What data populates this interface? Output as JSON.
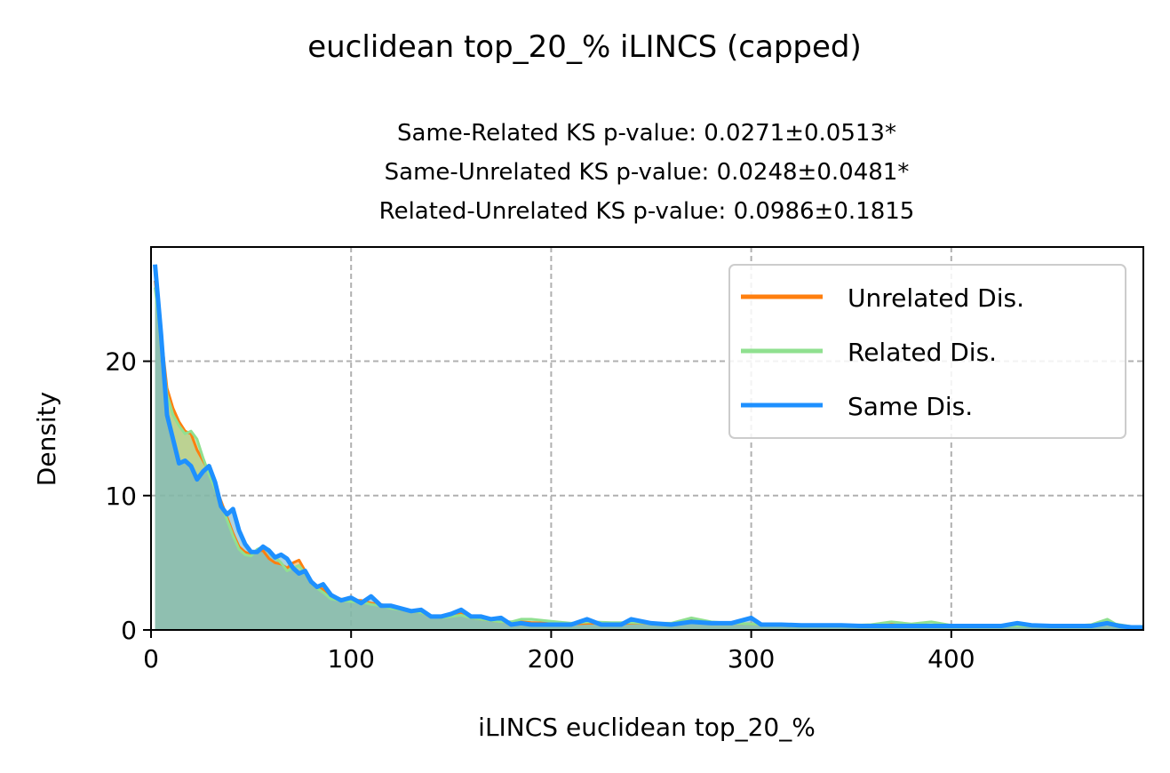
{
  "chart_data": {
    "type": "area",
    "suptitle": "euclidean top_20_% iLINCS (capped)",
    "title_lines": [
      "Same-Related KS p-value: 0.0271±0.0513*",
      "Same-Unrelated KS p-value: 0.0248±0.0481*",
      "Related-Unrelated KS p-value: 0.0986±0.1815"
    ],
    "xlabel": "iLINCS euclidean top_20_%",
    "ylabel": "Density",
    "xlim": [
      0,
      496
    ],
    "ylim": [
      0,
      28.5
    ],
    "xticks": [
      0,
      100,
      200,
      300,
      400
    ],
    "yticks": [
      0,
      10,
      20
    ],
    "grid": true,
    "legend_position": "upper-right",
    "series": [
      {
        "name": "Unrelated Dis.",
        "color": "#ff7f0e",
        "fill": "#e8a040",
        "points": [
          [
            2,
            26
          ],
          [
            5,
            22
          ],
          [
            8,
            18
          ],
          [
            11,
            16.5
          ],
          [
            14,
            15.5
          ],
          [
            17,
            14.8
          ],
          [
            20,
            14.6
          ],
          [
            23,
            13.4
          ],
          [
            26,
            12.6
          ],
          [
            29,
            11.8
          ],
          [
            32,
            10.8
          ],
          [
            35,
            9.6
          ],
          [
            38,
            8.4
          ],
          [
            41,
            7.2
          ],
          [
            44,
            6.2
          ],
          [
            47,
            5.8
          ],
          [
            50,
            5.6
          ],
          [
            53,
            5.9
          ],
          [
            56,
            5.9
          ],
          [
            59,
            5.3
          ],
          [
            62,
            5
          ],
          [
            65,
            4.9
          ],
          [
            68,
            4.6
          ],
          [
            71,
            5
          ],
          [
            74,
            5.2
          ],
          [
            77,
            4.4
          ],
          [
            80,
            3.6
          ],
          [
            83,
            3.3
          ],
          [
            86,
            3
          ],
          [
            90,
            2.4
          ],
          [
            95,
            2.3
          ],
          [
            100,
            2.2
          ],
          [
            105,
            2.2
          ],
          [
            110,
            2
          ],
          [
            115,
            1.9
          ],
          [
            120,
            1.7
          ],
          [
            125,
            1.5
          ],
          [
            130,
            1.4
          ],
          [
            135,
            1.3
          ],
          [
            140,
            1
          ],
          [
            145,
            0.9
          ],
          [
            150,
            1.1
          ],
          [
            155,
            1.2
          ],
          [
            160,
            0.9
          ],
          [
            165,
            0.8
          ],
          [
            170,
            0.7
          ],
          [
            175,
            0.6
          ],
          [
            180,
            0.6
          ],
          [
            185,
            0.6
          ],
          [
            190,
            0.55
          ],
          [
            200,
            0.5
          ],
          [
            210,
            0.45
          ],
          [
            220,
            0.5
          ],
          [
            230,
            0.45
          ],
          [
            240,
            0.5
          ],
          [
            250,
            0.5
          ],
          [
            260,
            0.45
          ],
          [
            270,
            0.7
          ],
          [
            280,
            0.55
          ],
          [
            290,
            0.5
          ],
          [
            300,
            0.45
          ],
          [
            310,
            0.4
          ],
          [
            320,
            0.4
          ],
          [
            330,
            0.35
          ],
          [
            340,
            0.35
          ],
          [
            350,
            0.35
          ],
          [
            360,
            0.35
          ],
          [
            370,
            0.4
          ],
          [
            380,
            0.35
          ],
          [
            390,
            0.35
          ],
          [
            400,
            0.3
          ],
          [
            410,
            0.3
          ],
          [
            420,
            0.3
          ],
          [
            430,
            0.3
          ],
          [
            440,
            0.3
          ],
          [
            450,
            0.3
          ],
          [
            460,
            0.3
          ],
          [
            470,
            0.35
          ],
          [
            478,
            0.7
          ],
          [
            482,
            0.4
          ],
          [
            490,
            0.25
          ],
          [
            496,
            0.25
          ]
        ]
      },
      {
        "name": "Related Dis.",
        "color": "#90e090",
        "fill": "#90d890",
        "points": [
          [
            2,
            25.5
          ],
          [
            5,
            21.5
          ],
          [
            8,
            17.5
          ],
          [
            11,
            16
          ],
          [
            14,
            15.2
          ],
          [
            17,
            14.6
          ],
          [
            20,
            14.8
          ],
          [
            23,
            14.2
          ],
          [
            26,
            12.8
          ],
          [
            29,
            11.6
          ],
          [
            32,
            10.5
          ],
          [
            35,
            9.4
          ],
          [
            38,
            8.2
          ],
          [
            41,
            7
          ],
          [
            44,
            6
          ],
          [
            47,
            5.6
          ],
          [
            50,
            5.5
          ],
          [
            53,
            6
          ],
          [
            56,
            6.2
          ],
          [
            59,
            6
          ],
          [
            62,
            5.4
          ],
          [
            65,
            5
          ],
          [
            68,
            4.4
          ],
          [
            71,
            4.6
          ],
          [
            74,
            4.8
          ],
          [
            77,
            4.2
          ],
          [
            80,
            3.5
          ],
          [
            83,
            3.1
          ],
          [
            86,
            2.8
          ],
          [
            90,
            2.3
          ],
          [
            95,
            2.2
          ],
          [
            100,
            2.1
          ],
          [
            105,
            2.1
          ],
          [
            110,
            1.9
          ],
          [
            115,
            1.8
          ],
          [
            120,
            1.6
          ],
          [
            125,
            1.5
          ],
          [
            130,
            1.4
          ],
          [
            135,
            1.3
          ],
          [
            140,
            1
          ],
          [
            145,
            0.9
          ],
          [
            150,
            1
          ],
          [
            155,
            1.1
          ],
          [
            160,
            0.9
          ],
          [
            165,
            0.8
          ],
          [
            170,
            0.7
          ],
          [
            175,
            0.6
          ],
          [
            180,
            0.6
          ],
          [
            185,
            0.8
          ],
          [
            190,
            0.8
          ],
          [
            200,
            0.65
          ],
          [
            210,
            0.5
          ],
          [
            220,
            0.6
          ],
          [
            230,
            0.55
          ],
          [
            240,
            0.55
          ],
          [
            250,
            0.5
          ],
          [
            260,
            0.5
          ],
          [
            270,
            0.9
          ],
          [
            280,
            0.6
          ],
          [
            290,
            0.5
          ],
          [
            300,
            0.45
          ],
          [
            310,
            0.4
          ],
          [
            320,
            0.4
          ],
          [
            330,
            0.35
          ],
          [
            340,
            0.35
          ],
          [
            350,
            0.35
          ],
          [
            360,
            0.4
          ],
          [
            370,
            0.6
          ],
          [
            380,
            0.45
          ],
          [
            390,
            0.6
          ],
          [
            400,
            0.35
          ],
          [
            410,
            0.3
          ],
          [
            420,
            0.3
          ],
          [
            430,
            0.3
          ],
          [
            440,
            0.3
          ],
          [
            450,
            0.3
          ],
          [
            460,
            0.3
          ],
          [
            470,
            0.4
          ],
          [
            478,
            0.8
          ],
          [
            482,
            0.45
          ],
          [
            490,
            0.25
          ],
          [
            496,
            0.25
          ]
        ]
      },
      {
        "name": "Same Dis.",
        "color": "#1e90ff",
        "fill": "#6aaec8",
        "points": [
          [
            2,
            27.2
          ],
          [
            5,
            22
          ],
          [
            8,
            16
          ],
          [
            11,
            14.2
          ],
          [
            14,
            12.4
          ],
          [
            17,
            12.6
          ],
          [
            20,
            12.2
          ],
          [
            23,
            11.2
          ],
          [
            26,
            11.8
          ],
          [
            29,
            12.2
          ],
          [
            32,
            11
          ],
          [
            35,
            9.2
          ],
          [
            38,
            8.6
          ],
          [
            41,
            9
          ],
          [
            44,
            7.4
          ],
          [
            47,
            6.4
          ],
          [
            50,
            5.8
          ],
          [
            53,
            5.8
          ],
          [
            56,
            6.2
          ],
          [
            59,
            5.9
          ],
          [
            62,
            5.4
          ],
          [
            65,
            5.6
          ],
          [
            68,
            5.3
          ],
          [
            71,
            4.6
          ],
          [
            74,
            4.2
          ],
          [
            77,
            4.4
          ],
          [
            80,
            3.6
          ],
          [
            83,
            3.2
          ],
          [
            86,
            3.4
          ],
          [
            90,
            2.6
          ],
          [
            95,
            2.2
          ],
          [
            100,
            2.4
          ],
          [
            105,
            2
          ],
          [
            110,
            2.5
          ],
          [
            115,
            1.8
          ],
          [
            120,
            1.8
          ],
          [
            125,
            1.6
          ],
          [
            130,
            1.4
          ],
          [
            135,
            1.5
          ],
          [
            140,
            1
          ],
          [
            145,
            1
          ],
          [
            150,
            1.2
          ],
          [
            155,
            1.5
          ],
          [
            160,
            1
          ],
          [
            165,
            1
          ],
          [
            170,
            0.8
          ],
          [
            175,
            0.9
          ],
          [
            180,
            0.4
          ],
          [
            185,
            0.5
          ],
          [
            190,
            0.4
          ],
          [
            200,
            0.4
          ],
          [
            210,
            0.4
          ],
          [
            218,
            0.8
          ],
          [
            225,
            0.4
          ],
          [
            235,
            0.4
          ],
          [
            240,
            0.8
          ],
          [
            250,
            0.5
          ],
          [
            260,
            0.4
          ],
          [
            270,
            0.6
          ],
          [
            280,
            0.5
          ],
          [
            290,
            0.5
          ],
          [
            300,
            0.9
          ],
          [
            305,
            0.4
          ],
          [
            315,
            0.4
          ],
          [
            325,
            0.35
          ],
          [
            335,
            0.35
          ],
          [
            345,
            0.35
          ],
          [
            355,
            0.3
          ],
          [
            365,
            0.3
          ],
          [
            375,
            0.3
          ],
          [
            385,
            0.3
          ],
          [
            395,
            0.3
          ],
          [
            405,
            0.3
          ],
          [
            415,
            0.3
          ],
          [
            425,
            0.3
          ],
          [
            433,
            0.5
          ],
          [
            440,
            0.35
          ],
          [
            450,
            0.3
          ],
          [
            460,
            0.3
          ],
          [
            470,
            0.3
          ],
          [
            478,
            0.5
          ],
          [
            484,
            0.3
          ],
          [
            490,
            0.2
          ],
          [
            496,
            0.2
          ]
        ]
      }
    ]
  }
}
